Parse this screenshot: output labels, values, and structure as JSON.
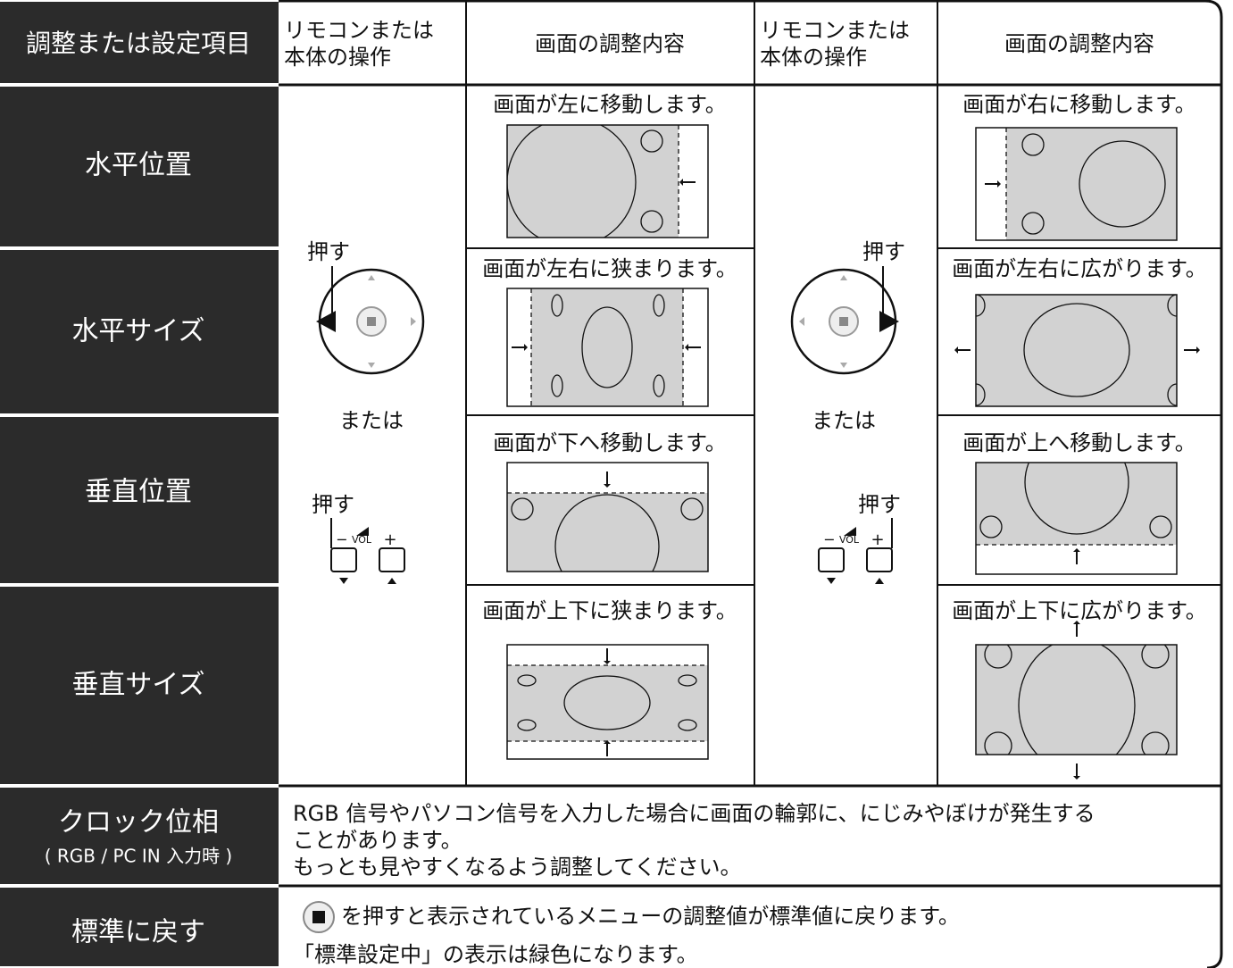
{
  "header": {
    "cells": [
      [
        "調整または設定項目"
      ],
      [
        "リモコンまたは",
        "本体の操作"
      ],
      [
        "画面の調整内容"
      ],
      [
        "リモコンまたは",
        "本体の操作"
      ],
      [
        "画面の調整内容"
      ]
    ]
  },
  "rows": [
    {
      "label": "水平位置",
      "left_caption": "画面が左に移動します。",
      "right_caption": "画面が右に移動します。"
    },
    {
      "label": "水平サイズ",
      "left_caption": "画面が左右に狭まります。",
      "right_caption": "画面が左右に広がります。"
    },
    {
      "label": "垂直位置",
      "left_caption": "画面が下へ移動します。",
      "right_caption": "画面が上へ移動します。"
    },
    {
      "label": "垂直サイズ",
      "left_caption": "画面が上下に狭まります。",
      "right_caption": "画面が上下に広がります。"
    }
  ],
  "controls": {
    "left": {
      "press_top": "押す",
      "or": "または",
      "press_bottom": "押す",
      "minus": "−",
      "vol": "VOL",
      "plus": "+"
    },
    "right": {
      "press_top": "押す",
      "or": "または",
      "press_bottom": "押す",
      "minus": "−",
      "vol": "VOL",
      "plus": "+"
    }
  },
  "clock": {
    "label": "クロック位相",
    "sublabel": "( RGB / PC IN 入力時 )",
    "lines": [
      "RGB 信号やパソコン信号を入力した場合に画面の輪郭に、にじみやぼけが発生する",
      "ことがあります。",
      "もっとも見やすくなるよう調整してください。"
    ]
  },
  "reset": {
    "label": "標準に戻す",
    "lines": [
      "を押すと表示されているメニューの調整値が標準値に戻ります。",
      "「標準設定中」の表示は緑色になります。"
    ]
  }
}
